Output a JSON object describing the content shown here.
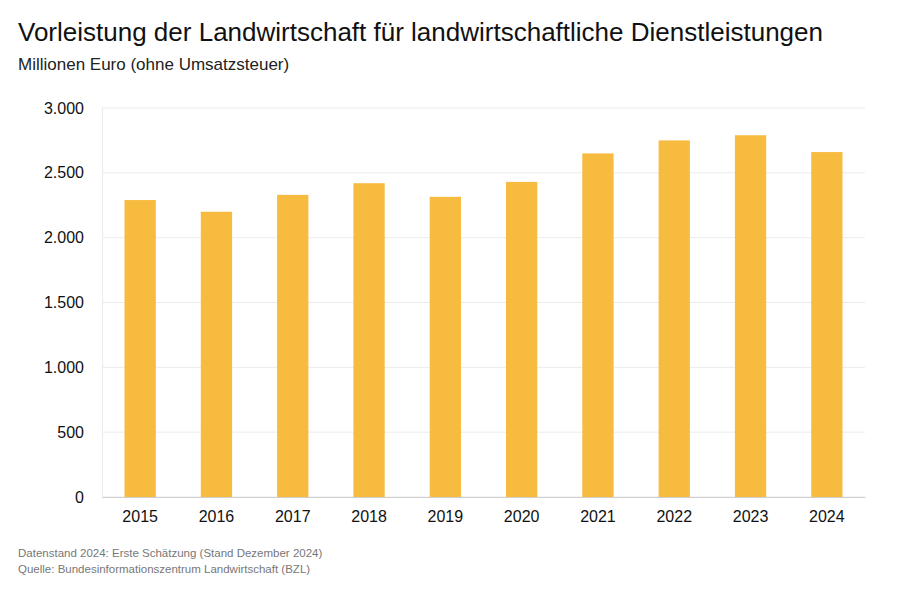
{
  "chart_data": {
    "type": "bar",
    "title": "Vorleistung der Landwirtschaft für landwirtschaftliche Dienstleistungen",
    "subtitle": "Millionen Euro (ohne Umsatzsteuer)",
    "categories": [
      "2015",
      "2016",
      "2017",
      "2018",
      "2019",
      "2020",
      "2021",
      "2022",
      "2023",
      "2024"
    ],
    "values": [
      2290,
      2200,
      2330,
      2420,
      2315,
      2430,
      2650,
      2750,
      2790,
      2660
    ],
    "color": "#f7bb3f",
    "ylim": [
      0,
      3000
    ],
    "yticks": [
      0,
      500,
      {
        "value": 1000,
        "label": "1.000"
      },
      {
        "value": 1500,
        "label": "1.500"
      },
      {
        "value": 2000,
        "label": "2.000"
      },
      {
        "value": 2500,
        "label": "2.500"
      },
      {
        "value": 3000,
        "label": "3.000"
      }
    ],
    "grid": true,
    "footnotes": [
      "Datenstand 2024: Erste Schätzung (Stand Dezember 2024)",
      "Quelle: Bundesinformationszentrum Landwirtschaft (BZL)"
    ]
  }
}
